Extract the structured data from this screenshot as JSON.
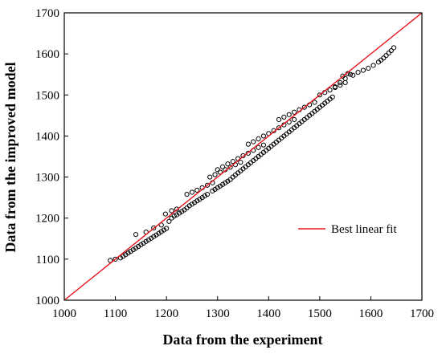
{
  "chart_data": {
    "type": "scatter",
    "title": "",
    "xlabel": "Data from the experiment",
    "ylabel": "Data from the improved model",
    "xlim": [
      1000,
      1700
    ],
    "ylim": [
      1000,
      1700
    ],
    "xticks": [
      1000,
      1100,
      1200,
      1300,
      1400,
      1500,
      1600,
      1700
    ],
    "yticks": [
      1000,
      1100,
      1200,
      1300,
      1400,
      1500,
      1600,
      1700
    ],
    "grid": false,
    "legend_position": "right-middle",
    "colors": {
      "fit_line": "#e8141c",
      "markers": "#000000",
      "axes": "#000000"
    },
    "series": [
      {
        "kind": "scatter",
        "marker": "open-circle",
        "points": [
          [
            1090,
            1097
          ],
          [
            1100,
            1100
          ],
          [
            1110,
            1103
          ],
          [
            1115,
            1107
          ],
          [
            1120,
            1111
          ],
          [
            1125,
            1115
          ],
          [
            1130,
            1119
          ],
          [
            1135,
            1123
          ],
          [
            1140,
            1127
          ],
          [
            1145,
            1131
          ],
          [
            1150,
            1135
          ],
          [
            1155,
            1139
          ],
          [
            1160,
            1143
          ],
          [
            1165,
            1147
          ],
          [
            1170,
            1151
          ],
          [
            1175,
            1155
          ],
          [
            1180,
            1159
          ],
          [
            1185,
            1163
          ],
          [
            1190,
            1167
          ],
          [
            1195,
            1171
          ],
          [
            1200,
            1175
          ],
          [
            1140,
            1160
          ],
          [
            1160,
            1166
          ],
          [
            1175,
            1176
          ],
          [
            1190,
            1183
          ],
          [
            1198,
            1210
          ],
          [
            1205,
            1192
          ],
          [
            1210,
            1200
          ],
          [
            1215,
            1205
          ],
          [
            1220,
            1208
          ],
          [
            1225,
            1212
          ],
          [
            1230,
            1216
          ],
          [
            1210,
            1218
          ],
          [
            1220,
            1222
          ],
          [
            1235,
            1220
          ],
          [
            1240,
            1225
          ],
          [
            1245,
            1230
          ],
          [
            1250,
            1234
          ],
          [
            1255,
            1238
          ],
          [
            1260,
            1242
          ],
          [
            1265,
            1246
          ],
          [
            1270,
            1250
          ],
          [
            1275,
            1254
          ],
          [
            1280,
            1258
          ],
          [
            1240,
            1258
          ],
          [
            1250,
            1263
          ],
          [
            1260,
            1268
          ],
          [
            1270,
            1274
          ],
          [
            1280,
            1280
          ],
          [
            1290,
            1286
          ],
          [
            1290,
            1266
          ],
          [
            1295,
            1270
          ],
          [
            1300,
            1274
          ],
          [
            1305,
            1278
          ],
          [
            1310,
            1282
          ],
          [
            1315,
            1286
          ],
          [
            1320,
            1290
          ],
          [
            1325,
            1294
          ],
          [
            1285,
            1300
          ],
          [
            1295,
            1306
          ],
          [
            1305,
            1312
          ],
          [
            1315,
            1318
          ],
          [
            1325,
            1324
          ],
          [
            1335,
            1330
          ],
          [
            1345,
            1336
          ],
          [
            1330,
            1300
          ],
          [
            1335,
            1305
          ],
          [
            1340,
            1310
          ],
          [
            1345,
            1315
          ],
          [
            1350,
            1320
          ],
          [
            1355,
            1325
          ],
          [
            1360,
            1330
          ],
          [
            1365,
            1335
          ],
          [
            1370,
            1340
          ],
          [
            1375,
            1345
          ],
          [
            1380,
            1350
          ],
          [
            1300,
            1318
          ],
          [
            1310,
            1325
          ],
          [
            1320,
            1332
          ],
          [
            1330,
            1338
          ],
          [
            1340,
            1345
          ],
          [
            1350,
            1352
          ],
          [
            1360,
            1358
          ],
          [
            1370,
            1365
          ],
          [
            1380,
            1372
          ],
          [
            1390,
            1378
          ],
          [
            1385,
            1355
          ],
          [
            1390,
            1360
          ],
          [
            1395,
            1365
          ],
          [
            1400,
            1370
          ],
          [
            1405,
            1375
          ],
          [
            1410,
            1380
          ],
          [
            1415,
            1385
          ],
          [
            1420,
            1390
          ],
          [
            1425,
            1395
          ],
          [
            1430,
            1400
          ],
          [
            1360,
            1380
          ],
          [
            1370,
            1386
          ],
          [
            1380,
            1393
          ],
          [
            1390,
            1400
          ],
          [
            1400,
            1406
          ],
          [
            1410,
            1413
          ],
          [
            1420,
            1420
          ],
          [
            1430,
            1427
          ],
          [
            1440,
            1434
          ],
          [
            1450,
            1440
          ],
          [
            1435,
            1405
          ],
          [
            1440,
            1410
          ],
          [
            1445,
            1415
          ],
          [
            1450,
            1420
          ],
          [
            1455,
            1425
          ],
          [
            1460,
            1430
          ],
          [
            1465,
            1435
          ],
          [
            1470,
            1440
          ],
          [
            1475,
            1445
          ],
          [
            1480,
            1450
          ],
          [
            1420,
            1440
          ],
          [
            1430,
            1446
          ],
          [
            1440,
            1452
          ],
          [
            1450,
            1458
          ],
          [
            1460,
            1464
          ],
          [
            1470,
            1470
          ],
          [
            1480,
            1476
          ],
          [
            1490,
            1482
          ],
          [
            1485,
            1455
          ],
          [
            1490,
            1460
          ],
          [
            1495,
            1465
          ],
          [
            1500,
            1470
          ],
          [
            1505,
            1475
          ],
          [
            1510,
            1480
          ],
          [
            1515,
            1485
          ],
          [
            1520,
            1490
          ],
          [
            1525,
            1495
          ],
          [
            1500,
            1500
          ],
          [
            1510,
            1506
          ],
          [
            1520,
            1512
          ],
          [
            1530,
            1518
          ],
          [
            1540,
            1524
          ],
          [
            1550,
            1530
          ],
          [
            1530,
            1520
          ],
          [
            1540,
            1530
          ],
          [
            1550,
            1540
          ],
          [
            1560,
            1550
          ],
          [
            1545,
            1546
          ],
          [
            1555,
            1552
          ],
          [
            1565,
            1548
          ],
          [
            1575,
            1555
          ],
          [
            1585,
            1560
          ],
          [
            1595,
            1565
          ],
          [
            1605,
            1572
          ],
          [
            1615,
            1580
          ],
          [
            1620,
            1585
          ],
          [
            1625,
            1590
          ],
          [
            1630,
            1596
          ],
          [
            1635,
            1602
          ],
          [
            1640,
            1608
          ],
          [
            1645,
            1615
          ]
        ]
      },
      {
        "name": "Best linear fit",
        "kind": "line",
        "points": [
          [
            1000,
            1000
          ],
          [
            1700,
            1700
          ]
        ]
      }
    ]
  }
}
